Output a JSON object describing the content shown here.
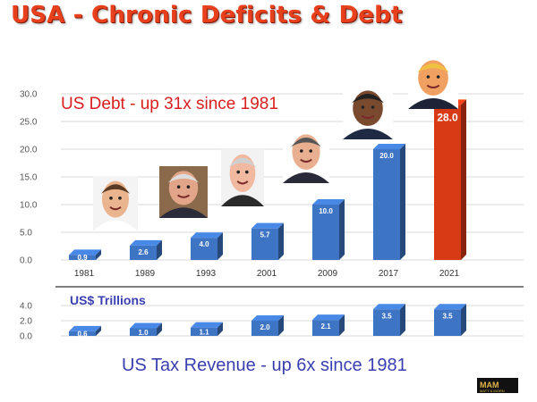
{
  "title": "USA - Chronic Deficits & Debt",
  "colors": {
    "bar": "#3d74c4",
    "bar_highlight": "#d93a16",
    "title": "#e8401c",
    "annotation_red": "#d81f1f",
    "annotation_blue": "#3a3fb0"
  },
  "logo": {
    "text": "MAM",
    "sub": "MATT & MORN"
  },
  "chart_data": [
    {
      "type": "bar",
      "title": "US Debt - up 31x since 1981",
      "categories": [
        "1981",
        "1989",
        "1993",
        "2001",
        "2009",
        "2017",
        "2021"
      ],
      "values": [
        0.9,
        2.6,
        4.0,
        5.7,
        10.0,
        20.0,
        28.0
      ],
      "value_labels": [
        "0.9",
        "2.6",
        "4.0",
        "5.7",
        "10.0",
        "20.0",
        "28.0"
      ],
      "highlight_index": 6,
      "ylim": [
        0,
        30
      ],
      "yticks": [
        "0.0",
        "5.0",
        "10.0",
        "15.0",
        "20.0",
        "25.0",
        "30.0"
      ],
      "grid": true,
      "portraits": [
        "portrait-1981",
        "portrait-1989",
        "portrait-1993",
        "portrait-2001",
        "portrait-2009",
        "portrait-2017",
        "portrait-2021"
      ]
    },
    {
      "type": "bar",
      "title": "US Tax Revenue - up 6x since 1981",
      "units_label": "US$ Trillions",
      "categories": [
        "1981",
        "1989",
        "1993",
        "2001",
        "2009",
        "2017",
        "2021"
      ],
      "values": [
        0.6,
        1.0,
        1.1,
        2.0,
        2.1,
        3.5,
        3.5
      ],
      "value_labels": [
        "0.6",
        "1.0",
        "1.1",
        "2.0",
        "2.1",
        "3.5",
        "3.5"
      ],
      "ylim": [
        0,
        4
      ],
      "yticks": [
        "0.0",
        "2.0",
        "4.0"
      ],
      "grid": true
    }
  ]
}
